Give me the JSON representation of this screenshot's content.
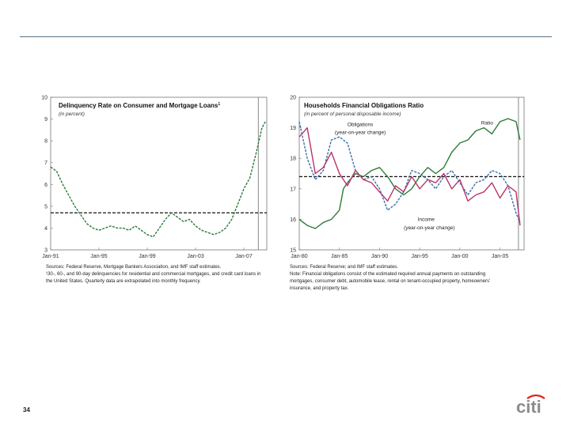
{
  "page_number": "34",
  "logo": {
    "text": "citi",
    "arc_color": "#e1261c",
    "text_color": "#8c8c8c"
  },
  "left_panel": {
    "notes": [
      "Sources: Federal Reserve, Mortgage Bankers Association, and IMF staff estimates.",
      "¹30-, 60-, and 90-day delinquencies for residential and commercial mortgages, and credit card loans in",
      "the United States. Quarterly data are extrapolated into monthly frequency."
    ]
  },
  "right_panel": {
    "notes": [
      "Sources: Federal Reserve; and IMF staff estimates.",
      "Note: Financial obligations consist of the estimated required annual payments on outstanding",
      "mortgages, consumer debt, automobile lease, rental on tenant-occupied property, homeowners'",
      "insurance, and property tax."
    ]
  },
  "chart_data": [
    {
      "type": "line",
      "title": "Delinquency Rate on Consumer and Mortgage Loans",
      "title_superscript": "1",
      "subtitle": "(in percent)",
      "xlabel": "",
      "ylabel": "",
      "x_range": [
        1991,
        2008.9
      ],
      "ylim": [
        3,
        10
      ],
      "y_ticks": [
        "3",
        "4",
        "5",
        "6",
        "7",
        "8",
        "9",
        "10"
      ],
      "x_ticks": [
        {
          "label": "Jan-91",
          "x": 1991
        },
        {
          "label": "Jan-95",
          "x": 1995
        },
        {
          "label": "Jan-99",
          "x": 1999
        },
        {
          "label": "Jan-03",
          "x": 2003
        },
        {
          "label": "Jan-07",
          "x": 2007
        }
      ],
      "series": [
        {
          "name": "Delinquency rate",
          "color": "#2d7a3a",
          "style": "dashed",
          "x": [
            1991,
            1991.5,
            1992,
            1992.5,
            1993,
            1993.5,
            1994,
            1994.5,
            1995,
            1995.5,
            1996,
            1996.5,
            1997,
            1997.5,
            1998,
            1998.5,
            1999,
            1999.5,
            2000,
            2000.5,
            2001,
            2001.5,
            2002,
            2002.5,
            2003,
            2003.5,
            2004,
            2004.5,
            2005,
            2005.5,
            2006,
            2006.5,
            2007,
            2007.5,
            2008,
            2008.5,
            2008.8
          ],
          "y": [
            6.8,
            6.6,
            6.0,
            5.5,
            5.0,
            4.6,
            4.2,
            4.0,
            3.9,
            4.0,
            4.1,
            4.0,
            4.0,
            3.9,
            4.1,
            3.9,
            3.7,
            3.6,
            4.0,
            4.4,
            4.7,
            4.5,
            4.3,
            4.4,
            4.1,
            3.9,
            3.8,
            3.7,
            3.8,
            4.0,
            4.4,
            5.1,
            5.8,
            6.3,
            7.4,
            8.6,
            8.9
          ]
        }
      ],
      "reference_lines": [
        {
          "type": "horizontal",
          "y": 4.7,
          "style": "black dashed"
        }
      ],
      "vertical_marker": {
        "x": 2008.2,
        "color": "#8a8a8a"
      }
    },
    {
      "type": "line",
      "title": "Households Financial Obligations Ratio",
      "subtitle": "(in percent of personal disposable income)",
      "xlabel": "",
      "ylabel": "",
      "x_range": [
        1980,
        2008
      ],
      "ylim": [
        15,
        20
      ],
      "y_ticks": [
        "15",
        "16",
        "17",
        "18",
        "19",
        "20"
      ],
      "x_ticks": [
        {
          "label": "Jan-80",
          "x": 1980
        },
        {
          "label": "Jan-85",
          "x": 1985
        },
        {
          "label": "Jan-90",
          "x": 1990
        },
        {
          "label": "Jan-95",
          "x": 1995
        },
        {
          "label": "Jan-00",
          "x": 2000
        },
        {
          "label": "Jan-05",
          "x": 2005
        }
      ],
      "annotations": [
        {
          "text": "Ratio",
          "x": 2003.4,
          "y": 19.1
        },
        {
          "text": "Obligations",
          "x": 1987.6,
          "y": 19.05
        },
        {
          "text": "(year-on-year change)",
          "x": 1987.6,
          "y": 18.8
        },
        {
          "text": "Income",
          "x": 1995.8,
          "y": 15.95
        },
        {
          "text": "(year-on-year change)",
          "x": 1996.2,
          "y": 15.68
        }
      ],
      "series": [
        {
          "name": "Ratio",
          "color": "#2d7a3a",
          "style": "solid",
          "x": [
            1980,
            1981,
            1982,
            1983,
            1984,
            1985,
            1985.5,
            1986,
            1987,
            1988,
            1989,
            1990,
            1991,
            1992,
            1993,
            1994,
            1995,
            1996,
            1997,
            1998,
            1999,
            2000,
            2001,
            2002,
            2003,
            2004,
            2005,
            2006,
            2007,
            2007.5
          ],
          "y": [
            16.0,
            15.8,
            15.7,
            15.9,
            16.0,
            16.3,
            17.0,
            17.2,
            17.5,
            17.4,
            17.6,
            17.7,
            17.4,
            17.0,
            16.8,
            17.0,
            17.4,
            17.7,
            17.5,
            17.7,
            18.2,
            18.5,
            18.6,
            18.9,
            19.0,
            18.8,
            19.2,
            19.3,
            19.2,
            18.6
          ]
        },
        {
          "name": "Obligations (year-on-year change)",
          "color": "#3a6fa8",
          "style": "dashed",
          "x": [
            1980,
            1981,
            1982,
            1983,
            1984,
            1985,
            1986,
            1987,
            1988,
            1989,
            1990,
            1991,
            1992,
            1993,
            1994,
            1995,
            1996,
            1997,
            1998,
            1999,
            2000,
            2001,
            2002,
            2003,
            2004,
            2005,
            2006,
            2007,
            2007.5
          ],
          "y": [
            19.2,
            18.0,
            17.3,
            17.6,
            18.6,
            18.7,
            18.5,
            17.6,
            17.3,
            17.4,
            17.0,
            16.3,
            16.5,
            16.9,
            17.6,
            17.5,
            17.3,
            17.0,
            17.4,
            17.6,
            17.2,
            16.8,
            17.2,
            17.3,
            17.6,
            17.5,
            17.1,
            16.2,
            15.9
          ]
        },
        {
          "name": "Income (year-on-year change)",
          "color": "#b8336a",
          "style": "solid",
          "x": [
            1980,
            1981,
            1982,
            1983,
            1984,
            1985,
            1986,
            1987,
            1988,
            1989,
            1990,
            1991,
            1992,
            1993,
            1994,
            1995,
            1996,
            1997,
            1998,
            1999,
            2000,
            2001,
            2002,
            2003,
            2004,
            2005,
            2006,
            2007,
            2007.5
          ],
          "y": [
            18.7,
            19.0,
            17.5,
            17.7,
            18.2,
            17.5,
            17.1,
            17.6,
            17.3,
            17.2,
            16.9,
            16.6,
            17.1,
            16.9,
            17.4,
            17.0,
            17.3,
            17.2,
            17.5,
            17.0,
            17.3,
            16.6,
            16.8,
            16.9,
            17.2,
            16.7,
            17.1,
            16.9,
            15.8
          ]
        }
      ],
      "reference_lines": [
        {
          "type": "horizontal",
          "y": 17.4,
          "style": "black dashed"
        }
      ],
      "vertical_marker": {
        "x": 2007.3,
        "color": "#8a8a8a"
      }
    }
  ]
}
